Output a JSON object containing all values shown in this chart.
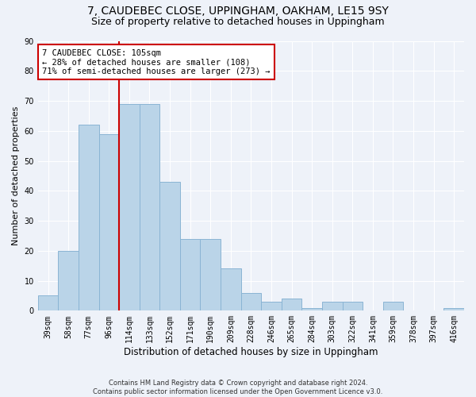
{
  "title": "7, CAUDEBEC CLOSE, UPPINGHAM, OAKHAM, LE15 9SY",
  "subtitle": "Size of property relative to detached houses in Uppingham",
  "xlabel": "Distribution of detached houses by size in Uppingham",
  "ylabel": "Number of detached properties",
  "categories": [
    "39sqm",
    "58sqm",
    "77sqm",
    "96sqm",
    "114sqm",
    "133sqm",
    "152sqm",
    "171sqm",
    "190sqm",
    "209sqm",
    "228sqm",
    "246sqm",
    "265sqm",
    "284sqm",
    "303sqm",
    "322sqm",
    "341sqm",
    "359sqm",
    "378sqm",
    "397sqm",
    "416sqm"
  ],
  "values": [
    5,
    20,
    62,
    59,
    69,
    69,
    43,
    24,
    24,
    14,
    6,
    3,
    4,
    1,
    3,
    3,
    0,
    3,
    0,
    0,
    1
  ],
  "bar_color": "#bad4e8",
  "bar_edge_color": "#8ab4d4",
  "vline_x": 3.5,
  "vline_color": "#cc0000",
  "annotation_line1": "7 CAUDEBEC CLOSE: 105sqm",
  "annotation_line2": "← 28% of detached houses are smaller (108)",
  "annotation_line3": "71% of semi-detached houses are larger (273) →",
  "annotation_box_color": "white",
  "annotation_box_edge": "#cc0000",
  "ylim": [
    0,
    90
  ],
  "yticks": [
    0,
    10,
    20,
    30,
    40,
    50,
    60,
    70,
    80,
    90
  ],
  "background_color": "#eef2f9",
  "grid_color": "#ffffff",
  "footer": "Contains HM Land Registry data © Crown copyright and database right 2024.\nContains public sector information licensed under the Open Government Licence v3.0.",
  "title_fontsize": 10,
  "subtitle_fontsize": 9,
  "ylabel_fontsize": 8,
  "xlabel_fontsize": 8.5,
  "tick_fontsize": 7,
  "annotation_fontsize": 7.5,
  "footer_fontsize": 6
}
